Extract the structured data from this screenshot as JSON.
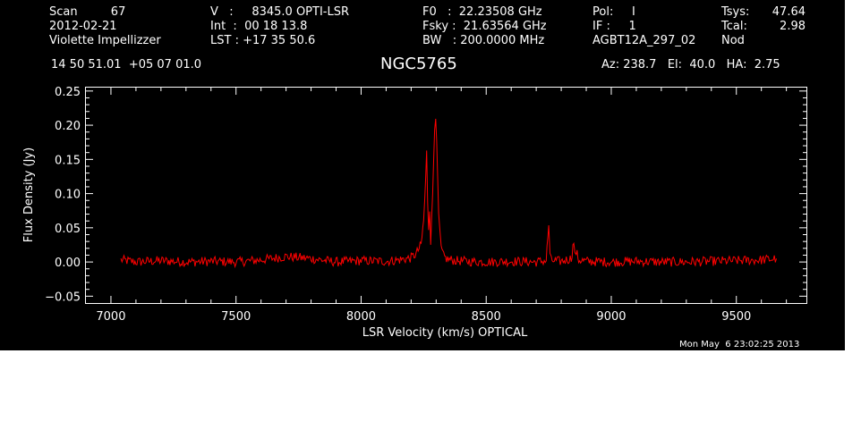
{
  "header": {
    "col1": [
      "Scan         67",
      "2012-02-21",
      "Violette Impellizzer"
    ],
    "col2": [
      "V   :     8345.0 OPTI-LSR",
      "Int  :  00 18 13.8",
      "LST : +17 35 50.6"
    ],
    "col3": [
      "F0   :  22.23508 GHz",
      "Fsky :  21.63564 GHz",
      "BW   : 200.0000 MHz"
    ],
    "col4": [
      "Pol:     I",
      "IF :     1",
      "AGBT12A_297_02"
    ],
    "col5": [
      "Tsys:",
      "Tcal:",
      "Nod"
    ],
    "col6": [
      "47.64",
      "2.98"
    ],
    "coords": "14 50 51.01  +05 07 01.0",
    "object": "NGC5765",
    "azelha": "Az: 238.7   El:  40.0   HA:  2.75",
    "timestamp": "Mon May  6 23:02:25 2013"
  },
  "chart_data": {
    "type": "line",
    "title": "NGC5765",
    "xlabel": "LSR Velocity (km/s) OPTICAL",
    "ylabel": "Flux Density (Jy)",
    "xlim": [
      6900,
      9780
    ],
    "ylim": [
      -0.06,
      0.255
    ],
    "xticks": [
      7000,
      7500,
      8000,
      8500,
      9000,
      9500
    ],
    "xtick_labels": [
      "7000",
      "7500",
      "8000",
      "8500",
      "9000",
      "9500"
    ],
    "yticks": [
      -0.05,
      0.0,
      0.05,
      0.1,
      0.15,
      0.2,
      0.25
    ],
    "ytick_labels": [
      "−0.05",
      "0.00",
      "0.05",
      "0.10",
      "0.15",
      "0.20",
      "0.25"
    ],
    "grid": false,
    "series": [
      {
        "color": "#ff0000",
        "x": [
          7040,
          7100,
          7200,
          7300,
          7400,
          7500,
          7600,
          7700,
          7800,
          7900,
          8000,
          8100,
          8150,
          8200,
          8220,
          8240,
          8250,
          8258,
          8262,
          8266,
          8270,
          8274,
          8278,
          8282,
          8286,
          8290,
          8294,
          8298,
          8302,
          8306,
          8310,
          8315,
          8320,
          8330,
          8345,
          8360,
          8380,
          8420,
          8500,
          8600,
          8700,
          8740,
          8750,
          8755,
          8760,
          8800,
          8840,
          8850,
          8855,
          8860,
          8870,
          8900,
          9000,
          9100,
          9200,
          9300,
          9400,
          9500,
          9600,
          9660
        ],
        "y": [
          0.003,
          0.0,
          0.002,
          0.0,
          0.001,
          0.0,
          0.003,
          0.008,
          0.005,
          0.0,
          0.002,
          0.001,
          0.003,
          0.006,
          0.012,
          0.025,
          0.06,
          0.12,
          0.16,
          0.09,
          0.05,
          0.08,
          0.03,
          0.06,
          0.1,
          0.15,
          0.2,
          0.215,
          0.17,
          0.12,
          0.07,
          0.04,
          0.02,
          0.008,
          0.004,
          0.003,
          0.002,
          0.001,
          0.0,
          0.001,
          0.0,
          0.002,
          0.055,
          0.008,
          0.002,
          0.001,
          0.005,
          0.03,
          0.008,
          0.015,
          0.003,
          0.001,
          0.0,
          0.001,
          0.0,
          0.0,
          0.001,
          0.002,
          0.003,
          0.005
        ]
      }
    ]
  }
}
